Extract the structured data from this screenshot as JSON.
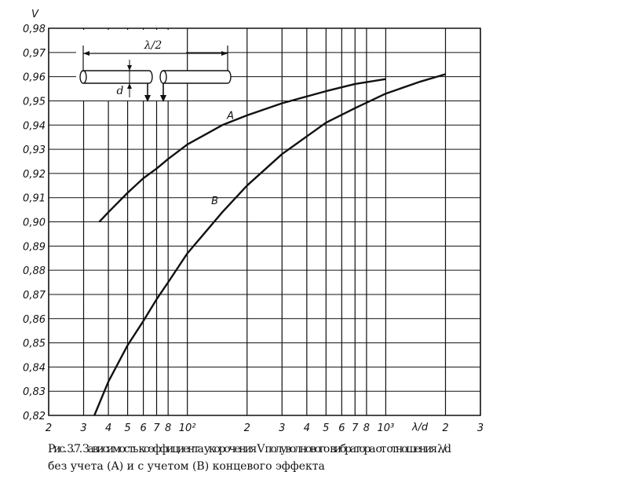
{
  "chart_data": {
    "type": "line",
    "log_x": true,
    "grid": true,
    "color": "#111",
    "y_label": "V",
    "x_label": "λ/d",
    "caption": [
      "Рис. 3.7. Зависимость коэффициента укорочения V полуволнового вибратора от отношения λ/d",
      "без учета (A) и с учетом (B) концевого эффекта"
    ],
    "inset": {
      "length_label": "λ/2",
      "diameter_label": "d"
    },
    "xlim": [
      20,
      3000
    ],
    "ylim": [
      0.82,
      0.98
    ],
    "xticks": [
      {
        "value": 20,
        "label": "2"
      },
      {
        "value": 30,
        "label": "3"
      },
      {
        "value": 40,
        "label": "4"
      },
      {
        "value": 50,
        "label": "5"
      },
      {
        "value": 60,
        "label": "6"
      },
      {
        "value": 70,
        "label": "7"
      },
      {
        "value": 80,
        "label": "8"
      },
      {
        "value": 100,
        "label": "10²"
      },
      {
        "value": 200,
        "label": "2"
      },
      {
        "value": 300,
        "label": "3"
      },
      {
        "value": 400,
        "label": "4"
      },
      {
        "value": 500,
        "label": "5"
      },
      {
        "value": 600,
        "label": "6"
      },
      {
        "value": 700,
        "label": "7"
      },
      {
        "value": 800,
        "label": "8"
      },
      {
        "value": 1000,
        "label": "10³"
      },
      {
        "value": 2000,
        "label": "2"
      },
      {
        "value": 3000,
        "label": "3"
      }
    ],
    "yticks": [
      {
        "value": 0.82,
        "label": "0,82"
      },
      {
        "value": 0.83,
        "label": "0,83"
      },
      {
        "value": 0.84,
        "label": "0,84"
      },
      {
        "value": 0.85,
        "label": "0,85"
      },
      {
        "value": 0.86,
        "label": "0,86"
      },
      {
        "value": 0.87,
        "label": "0,87"
      },
      {
        "value": 0.88,
        "label": "0,88"
      },
      {
        "value": 0.89,
        "label": "0,89"
      },
      {
        "value": 0.9,
        "label": "0,90"
      },
      {
        "value": 0.91,
        "label": "0,91"
      },
      {
        "value": 0.92,
        "label": "0,92"
      },
      {
        "value": 0.93,
        "label": "0,93"
      },
      {
        "value": 0.94,
        "label": "0,94"
      },
      {
        "value": 0.95,
        "label": "0,95"
      },
      {
        "value": 0.96,
        "label": "0,96"
      },
      {
        "value": 0.97,
        "label": "0,97"
      },
      {
        "value": 0.98,
        "label": "0,98"
      }
    ],
    "series": [
      {
        "name": "A",
        "color": "#111",
        "x": [
          36,
          40,
          50,
          60,
          70,
          80,
          100,
          150,
          200,
          300,
          500,
          700,
          1000
        ],
        "values": [
          0.9,
          0.904,
          0.912,
          0.918,
          0.922,
          0.926,
          0.932,
          0.94,
          0.944,
          0.949,
          0.954,
          0.957,
          0.959
        ]
      },
      {
        "name": "B",
        "color": "#111",
        "x": [
          34,
          40,
          50,
          60,
          70,
          80,
          100,
          150,
          200,
          300,
          500,
          700,
          1000,
          1500,
          2000
        ],
        "values": [
          0.82,
          0.834,
          0.849,
          0.859,
          0.868,
          0.875,
          0.887,
          0.904,
          0.915,
          0.928,
          0.941,
          0.947,
          0.953,
          0.958,
          0.961
        ]
      }
    ]
  }
}
